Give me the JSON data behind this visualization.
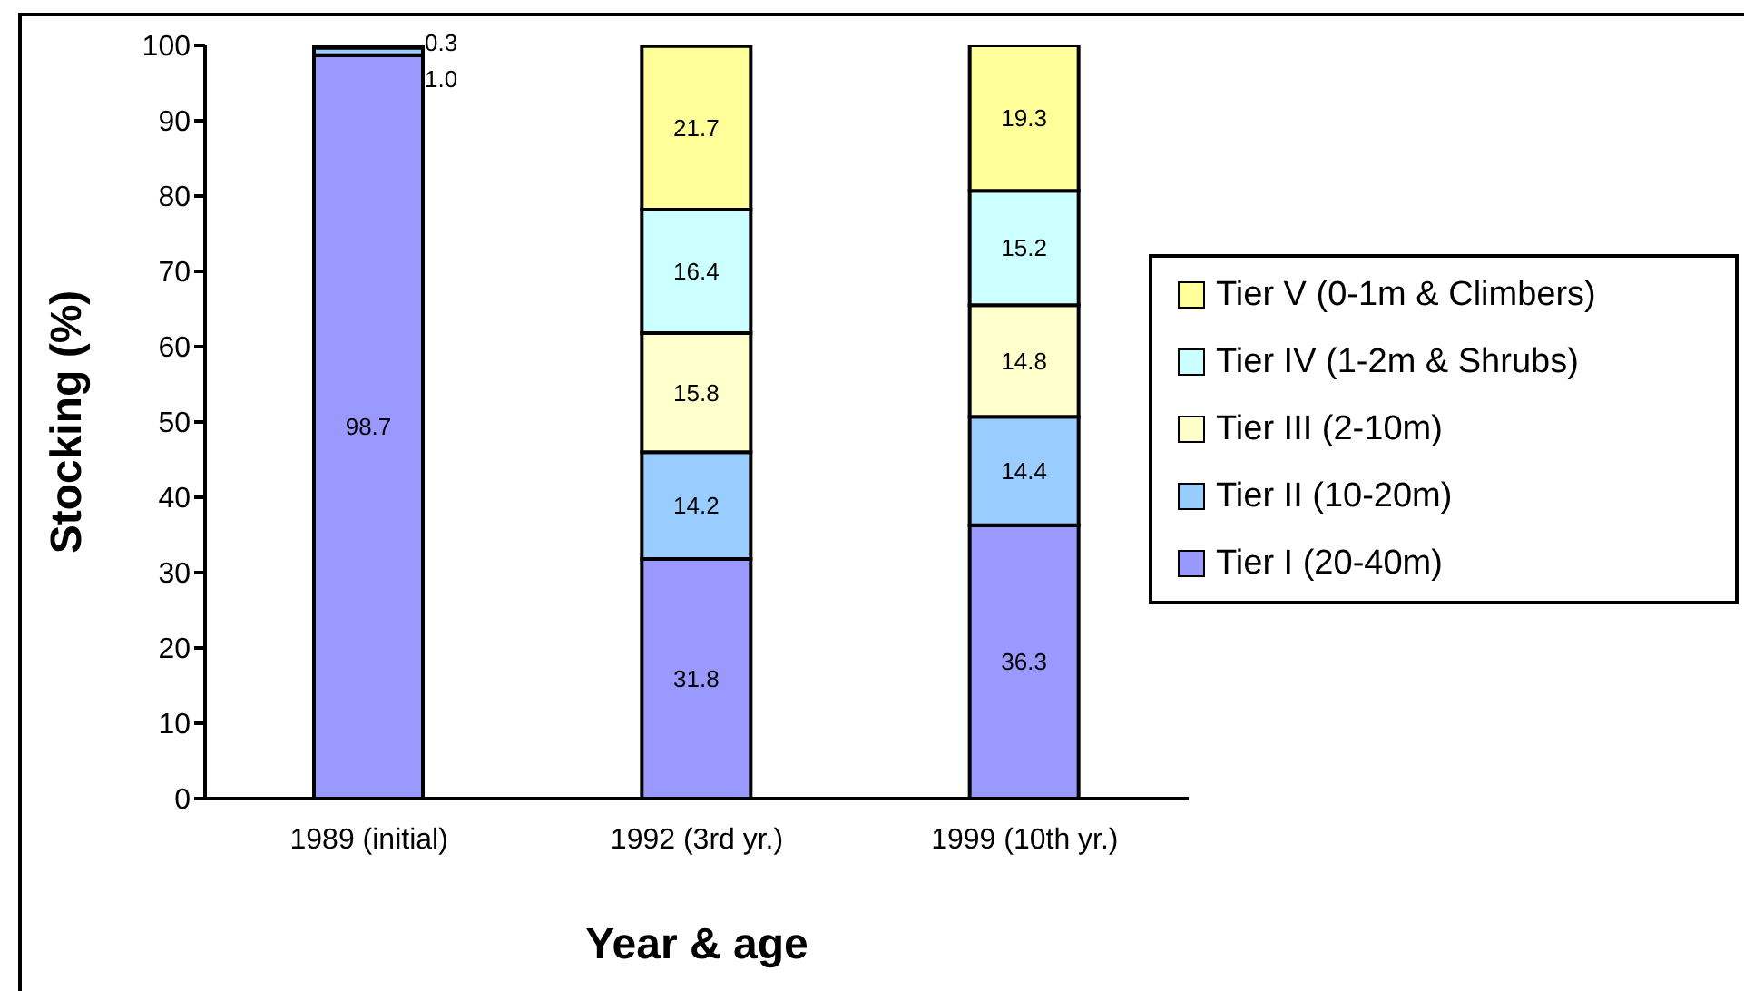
{
  "chart_data": {
    "type": "bar",
    "stacked": true,
    "xlabel": "Year & age",
    "ylabel": "Stocking (%)",
    "categories": [
      "1989 (initial)",
      "1992 (3rd yr.)",
      "1999 (10th yr.)"
    ],
    "series": [
      {
        "name": "Tier I (20-40m)",
        "color": "#9999ff",
        "values": [
          98.7,
          31.8,
          36.3
        ],
        "value_labels": [
          "98.7",
          "31.8",
          "36.3"
        ]
      },
      {
        "name": "Tier II (10-20m)",
        "color": "#99ccff",
        "values": [
          1.0,
          14.2,
          14.4
        ],
        "value_labels": [
          "1.0",
          "14.2",
          "14.4"
        ]
      },
      {
        "name": "Tier III (2-10m)",
        "color": "#ffffcc",
        "values": [
          0.3,
          15.8,
          14.8
        ],
        "value_labels": [
          "0.3",
          "15.8",
          "14.8"
        ]
      },
      {
        "name": "Tier IV (1-2m & Shrubs)",
        "color": "#ccffff",
        "values": [
          null,
          16.4,
          15.2
        ],
        "value_labels": [
          null,
          "16.4",
          "15.2"
        ]
      },
      {
        "name": "Tier V (0-1m & Climbers)",
        "color": "#ffff99",
        "values": [
          null,
          21.7,
          19.3
        ],
        "value_labels": [
          null,
          "21.7",
          "19.3"
        ]
      }
    ],
    "ylim": [
      0,
      100
    ],
    "yticks": [
      0,
      10,
      20,
      30,
      40,
      50,
      60,
      70,
      80,
      90,
      100
    ],
    "legend": "right"
  }
}
